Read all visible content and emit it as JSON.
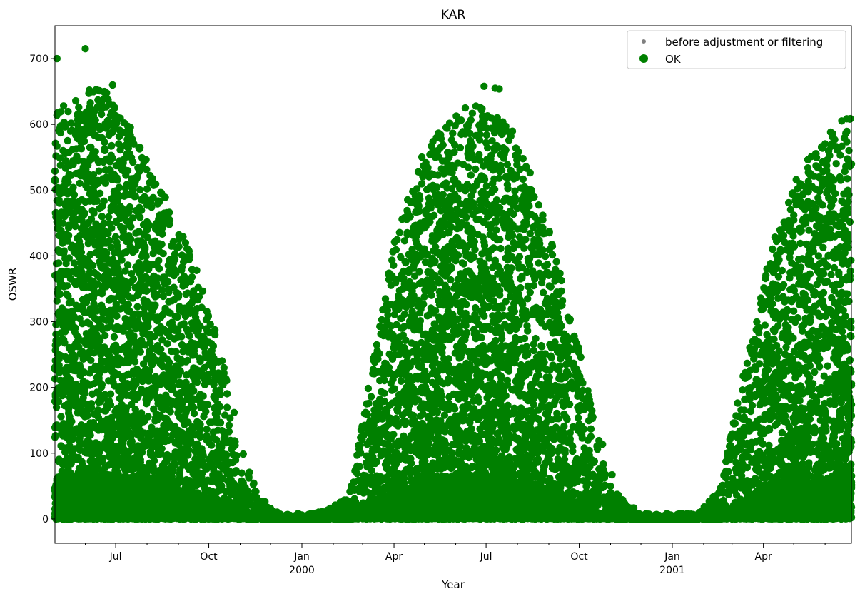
{
  "chart_data": {
    "type": "scatter",
    "title": "KAR",
    "xlabel": "Year",
    "ylabel": "OSWR",
    "x_range": [
      "1999-05-02",
      "2001-06-27"
    ],
    "ylim": [
      -37,
      750
    ],
    "y_ticks": [
      0,
      100,
      200,
      300,
      400,
      500,
      600,
      700
    ],
    "x_ticks": [
      {
        "date": "1999-07-01",
        "label": "Jul",
        "year": ""
      },
      {
        "date": "1999-10-01",
        "label": "Oct",
        "year": ""
      },
      {
        "date": "2000-01-01",
        "label": "Jan",
        "year": "2000"
      },
      {
        "date": "2000-04-01",
        "label": "Apr",
        "year": ""
      },
      {
        "date": "2000-07-01",
        "label": "Jul",
        "year": ""
      },
      {
        "date": "2000-10-01",
        "label": "Oct",
        "year": ""
      },
      {
        "date": "2001-01-01",
        "label": "Jan",
        "year": "2001"
      },
      {
        "date": "2001-04-01",
        "label": "Apr",
        "year": ""
      }
    ],
    "grid": false,
    "legend_position": "top-right",
    "series": [
      {
        "name": "before adjustment or filtering",
        "color": "#808080",
        "marker": "small-dot",
        "values": []
      },
      {
        "name": "OK",
        "color": "#008000",
        "marker": "dot",
        "envelope": [
          {
            "date": "1999-05-02",
            "max": 620
          },
          {
            "date": "1999-06-15",
            "max": 660
          },
          {
            "date": "1999-07-15",
            "max": 600
          },
          {
            "date": "1999-08-15",
            "max": 500
          },
          {
            "date": "1999-09-15",
            "max": 400
          },
          {
            "date": "1999-10-15",
            "max": 250
          },
          {
            "date": "1999-11-01",
            "max": 110
          },
          {
            "date": "1999-11-20",
            "max": 30
          },
          {
            "date": "1999-12-10",
            "max": 5
          },
          {
            "date": "2000-01-15",
            "max": 5
          },
          {
            "date": "2000-02-15",
            "max": 30
          },
          {
            "date": "2000-03-01",
            "max": 150
          },
          {
            "date": "2000-04-01",
            "max": 420
          },
          {
            "date": "2000-05-01",
            "max": 560
          },
          {
            "date": "2000-06-01",
            "max": 620
          },
          {
            "date": "2000-06-25",
            "max": 630
          },
          {
            "date": "2000-07-25",
            "max": 600
          },
          {
            "date": "2000-08-25",
            "max": 480
          },
          {
            "date": "2000-09-25",
            "max": 300
          },
          {
            "date": "2000-10-20",
            "max": 130
          },
          {
            "date": "2000-11-10",
            "max": 30
          },
          {
            "date": "2000-12-01",
            "max": 5
          },
          {
            "date": "2001-01-25",
            "max": 5
          },
          {
            "date": "2001-02-15",
            "max": 40
          },
          {
            "date": "2001-03-10",
            "max": 200
          },
          {
            "date": "2001-04-10",
            "max": 420
          },
          {
            "date": "2001-05-10",
            "max": 540
          },
          {
            "date": "2001-06-27",
            "max": 620
          }
        ],
        "outliers": [
          {
            "date": "1999-05-04",
            "value": 700
          },
          {
            "date": "1999-06-01",
            "value": 715
          },
          {
            "date": "1999-06-20",
            "value": 650
          },
          {
            "date": "1999-06-28",
            "value": 660
          },
          {
            "date": "1999-10-27",
            "value": 112
          },
          {
            "date": "2000-06-29",
            "value": 658
          },
          {
            "date": "2000-07-10",
            "value": 655
          },
          {
            "date": "2000-07-14",
            "value": 654
          }
        ]
      }
    ]
  }
}
